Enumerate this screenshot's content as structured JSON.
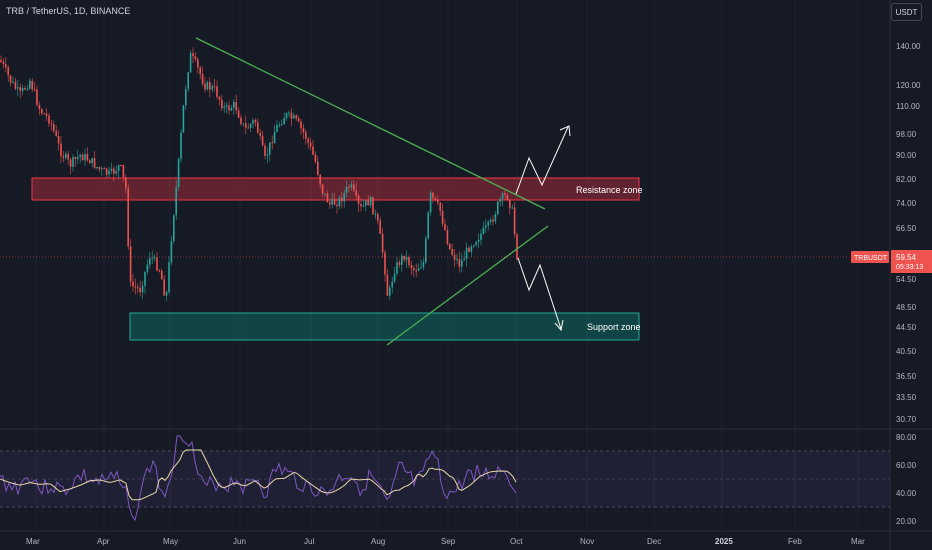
{
  "header": {
    "title": "TRB / TetherUS, 1D, BINANCE",
    "currency_button": "USDT"
  },
  "price_axis": {
    "ticks": [
      "140.00",
      "120.00",
      "110.00",
      "98.00",
      "90.00",
      "82.00",
      "74.00",
      "66.50",
      "54.50",
      "48.50",
      "44.50",
      "40.50",
      "36.50",
      "33.50",
      "30.70"
    ],
    "symbol_tag": "TRBUSDT",
    "last_price": "59.54",
    "countdown": "05:33:13"
  },
  "rsi_axis": {
    "ticks": [
      "80.00",
      "60.00",
      "40.00",
      "20.00"
    ]
  },
  "time_axis": {
    "labels": [
      "Mar",
      "Apr",
      "May",
      "Jun",
      "Jul",
      "Aug",
      "Sep",
      "Oct",
      "Nov",
      "Dec",
      "2025",
      "Feb",
      "Mar"
    ]
  },
  "annotations": {
    "resistance": "Resistance zone",
    "support": "Support zone"
  },
  "colors": {
    "background": "#161a25",
    "up": "#26a69a",
    "down": "#ef5350",
    "trendline": "#4caf50",
    "rsi_line": "#7e57c2",
    "rsi_ma": "#e8d9a8"
  }
}
